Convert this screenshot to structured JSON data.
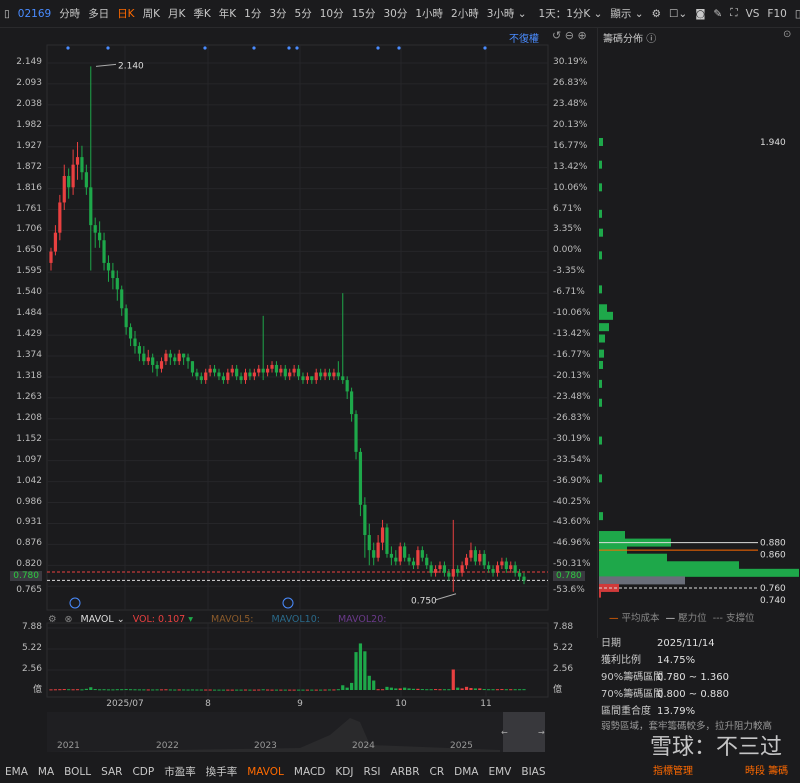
{
  "toolbar": {
    "code": "02169",
    "periods": [
      "分時",
      "多日",
      "日K",
      "周K",
      "月K",
      "季K",
      "年K",
      "1分",
      "3分",
      "5分",
      "10分",
      "15分",
      "30分",
      "1小時",
      "2小時",
      "3小時 ⌄"
    ],
    "active": "日K",
    "sub_period": "1天：1分K ⌄",
    "display": "顯示 ⌄",
    "right": [
      "VS",
      "F10"
    ]
  },
  "chart": {
    "adjust": "不復權",
    "high_label": "2.140",
    "low_label": "0.750",
    "current_price": "0.780",
    "left_axis": [
      "2.149",
      "2.093",
      "2.038",
      "1.982",
      "1.927",
      "1.872",
      "1.816",
      "1.761",
      "1.706",
      "1.650",
      "1.595",
      "1.540",
      "1.484",
      "1.429",
      "1.374",
      "1.318",
      "1.263",
      "1.208",
      "1.152",
      "1.097",
      "1.042",
      "0.986",
      "0.931",
      "0.876",
      "0.820"
    ],
    "left_axis_bottom": "0.765",
    "right_axis": [
      "30.19%",
      "26.83%",
      "23.48%",
      "20.13%",
      "16.77%",
      "13.42%",
      "10.06%",
      "6.71%",
      "3.35%",
      "0.00%",
      "-3.35%",
      "-6.71%",
      "-10.06%",
      "-13.42%",
      "-16.77%",
      "-20.13%",
      "-23.48%",
      "-26.83%",
      "-30.19%",
      "-33.54%",
      "-36.90%",
      "-40.25%",
      "-43.60%",
      "-46.96%",
      "-50.31%"
    ],
    "right_axis_bottom": "-53.6%",
    "up_color": "#e84040",
    "down_color": "#1ea84a",
    "candles": [
      [
        1.62,
        1.66,
        1.6,
        1.65,
        0.08
      ],
      [
        1.65,
        1.72,
        1.64,
        1.7,
        0.09
      ],
      [
        1.7,
        1.8,
        1.68,
        1.78,
        0.1
      ],
      [
        1.78,
        1.88,
        1.76,
        1.85,
        0.12
      ],
      [
        1.85,
        1.87,
        1.79,
        1.82,
        0.1
      ],
      [
        1.82,
        1.92,
        1.8,
        1.88,
        0.09
      ],
      [
        1.88,
        1.94,
        1.84,
        1.9,
        0.1
      ],
      [
        1.9,
        1.93,
        1.84,
        1.86,
        0.08
      ],
      [
        1.86,
        1.88,
        1.8,
        1.82,
        0.15
      ],
      [
        1.82,
        2.14,
        1.6,
        1.72,
        0.35
      ],
      [
        1.72,
        1.74,
        1.66,
        1.7,
        0.12
      ],
      [
        1.7,
        1.73,
        1.66,
        1.68,
        0.09
      ],
      [
        1.68,
        1.7,
        1.6,
        1.62,
        0.1
      ],
      [
        1.62,
        1.64,
        1.57,
        1.6,
        0.08
      ],
      [
        1.6,
        1.62,
        1.55,
        1.58,
        0.08
      ],
      [
        1.58,
        1.6,
        1.52,
        1.55,
        0.1
      ],
      [
        1.55,
        1.56,
        1.48,
        1.5,
        0.1
      ],
      [
        1.5,
        1.51,
        1.43,
        1.45,
        0.12
      ],
      [
        1.45,
        1.46,
        1.4,
        1.42,
        0.1
      ],
      [
        1.42,
        1.44,
        1.38,
        1.4,
        0.09
      ],
      [
        1.4,
        1.41,
        1.36,
        1.38,
        0.08
      ],
      [
        1.38,
        1.4,
        1.35,
        1.36,
        0.08
      ],
      [
        1.36,
        1.39,
        1.35,
        1.37,
        0.07
      ],
      [
        1.37,
        1.38,
        1.33,
        1.35,
        0.07
      ],
      [
        1.35,
        1.36,
        1.32,
        1.34,
        0.08
      ],
      [
        1.34,
        1.37,
        1.33,
        1.36,
        0.08
      ],
      [
        1.36,
        1.39,
        1.35,
        1.38,
        0.09
      ],
      [
        1.38,
        1.39,
        1.35,
        1.37,
        0.07
      ],
      [
        1.37,
        1.38,
        1.35,
        1.36,
        0.06
      ],
      [
        1.36,
        1.39,
        1.35,
        1.38,
        0.07
      ],
      [
        1.38,
        1.38,
        1.35,
        1.37,
        0.07
      ],
      [
        1.37,
        1.38,
        1.34,
        1.36,
        0.06
      ],
      [
        1.36,
        1.36,
        1.32,
        1.33,
        0.07
      ],
      [
        1.33,
        1.34,
        1.31,
        1.32,
        0.06
      ],
      [
        1.32,
        1.33,
        1.3,
        1.31,
        0.06
      ],
      [
        1.31,
        1.34,
        1.3,
        1.33,
        0.06
      ],
      [
        1.33,
        1.35,
        1.32,
        1.34,
        0.06
      ],
      [
        1.34,
        1.35,
        1.32,
        1.33,
        0.05
      ],
      [
        1.33,
        1.34,
        1.31,
        1.32,
        0.05
      ],
      [
        1.32,
        1.33,
        1.3,
        1.31,
        0.05
      ],
      [
        1.31,
        1.34,
        1.3,
        1.33,
        0.05
      ],
      [
        1.33,
        1.35,
        1.32,
        1.34,
        0.05
      ],
      [
        1.34,
        1.35,
        1.31,
        1.32,
        0.05
      ],
      [
        1.32,
        1.33,
        1.3,
        1.31,
        0.05
      ],
      [
        1.31,
        1.34,
        1.3,
        1.33,
        0.06
      ],
      [
        1.33,
        1.34,
        1.31,
        1.32,
        0.05
      ],
      [
        1.32,
        1.34,
        1.31,
        1.33,
        0.05
      ],
      [
        1.33,
        1.35,
        1.32,
        1.34,
        0.06
      ],
      [
        1.34,
        1.48,
        1.31,
        1.33,
        0.09
      ],
      [
        1.33,
        1.35,
        1.32,
        1.34,
        0.06
      ],
      [
        1.34,
        1.36,
        1.33,
        1.35,
        0.05
      ],
      [
        1.35,
        1.36,
        1.32,
        1.33,
        0.05
      ],
      [
        1.33,
        1.35,
        1.32,
        1.34,
        0.05
      ],
      [
        1.34,
        1.35,
        1.31,
        1.32,
        0.05
      ],
      [
        1.32,
        1.34,
        1.31,
        1.33,
        0.05
      ],
      [
        1.33,
        1.35,
        1.32,
        1.34,
        0.05
      ],
      [
        1.34,
        1.35,
        1.31,
        1.32,
        0.05
      ],
      [
        1.32,
        1.33,
        1.3,
        1.31,
        0.05
      ],
      [
        1.31,
        1.33,
        1.3,
        1.32,
        0.05
      ],
      [
        1.32,
        1.32,
        1.3,
        1.31,
        0.05
      ],
      [
        1.31,
        1.34,
        1.3,
        1.33,
        0.05
      ],
      [
        1.33,
        1.34,
        1.31,
        1.32,
        0.05
      ],
      [
        1.32,
        1.34,
        1.31,
        1.33,
        0.06
      ],
      [
        1.33,
        1.34,
        1.31,
        1.32,
        0.07
      ],
      [
        1.32,
        1.34,
        1.31,
        1.33,
        0.07
      ],
      [
        1.33,
        1.36,
        1.31,
        1.32,
        0.1
      ],
      [
        1.32,
        1.54,
        1.3,
        1.31,
        0.6
      ],
      [
        1.31,
        1.32,
        1.26,
        1.28,
        0.3
      ],
      [
        1.28,
        1.29,
        1.2,
        1.22,
        0.9
      ],
      [
        1.22,
        1.23,
        1.1,
        1.12,
        4.8
      ],
      [
        1.12,
        1.13,
        0.95,
        0.98,
        5.9
      ],
      [
        0.98,
        1.0,
        0.84,
        0.9,
        4.9
      ],
      [
        0.9,
        0.93,
        0.82,
        0.86,
        1.8
      ],
      [
        0.86,
        0.88,
        0.82,
        0.84,
        1.2
      ],
      [
        0.84,
        0.9,
        0.83,
        0.88,
        0.1
      ],
      [
        0.88,
        0.94,
        0.86,
        0.92,
        0.1
      ],
      [
        0.92,
        0.93,
        0.84,
        0.85,
        0.4
      ],
      [
        0.85,
        0.87,
        0.82,
        0.84,
        0.3
      ],
      [
        0.84,
        0.86,
        0.82,
        0.83,
        0.2
      ],
      [
        0.83,
        0.88,
        0.82,
        0.87,
        0.2
      ],
      [
        0.87,
        0.88,
        0.83,
        0.84,
        0.3
      ],
      [
        0.84,
        0.85,
        0.82,
        0.83,
        0.2
      ],
      [
        0.83,
        0.84,
        0.81,
        0.82,
        0.15
      ],
      [
        0.82,
        0.87,
        0.81,
        0.86,
        0.15
      ],
      [
        0.86,
        0.87,
        0.83,
        0.84,
        0.12
      ],
      [
        0.84,
        0.85,
        0.81,
        0.82,
        0.1
      ],
      [
        0.82,
        0.83,
        0.79,
        0.8,
        0.1
      ],
      [
        0.8,
        0.82,
        0.79,
        0.81,
        0.12
      ],
      [
        0.81,
        0.83,
        0.8,
        0.82,
        0.1
      ],
      [
        0.82,
        0.83,
        0.79,
        0.8,
        0.1
      ],
      [
        0.8,
        0.81,
        0.78,
        0.79,
        0.1
      ],
      [
        0.79,
        0.94,
        0.75,
        0.81,
        2.6
      ],
      [
        0.81,
        0.82,
        0.79,
        0.8,
        0.3
      ],
      [
        0.8,
        0.83,
        0.79,
        0.82,
        0.2
      ],
      [
        0.82,
        0.85,
        0.81,
        0.84,
        0.4
      ],
      [
        0.84,
        0.88,
        0.83,
        0.86,
        0.25
      ],
      [
        0.86,
        0.87,
        0.82,
        0.83,
        0.2
      ],
      [
        0.83,
        0.86,
        0.82,
        0.85,
        0.2
      ],
      [
        0.85,
        0.86,
        0.81,
        0.82,
        0.12
      ],
      [
        0.82,
        0.83,
        0.8,
        0.81,
        0.1
      ],
      [
        0.81,
        0.82,
        0.79,
        0.8,
        0.1
      ],
      [
        0.8,
        0.83,
        0.79,
        0.82,
        0.1
      ],
      [
        0.82,
        0.84,
        0.81,
        0.83,
        0.12
      ],
      [
        0.83,
        0.84,
        0.8,
        0.81,
        0.1
      ],
      [
        0.81,
        0.83,
        0.8,
        0.82,
        0.1
      ],
      [
        0.82,
        0.83,
        0.79,
        0.8,
        0.1
      ],
      [
        0.8,
        0.81,
        0.78,
        0.79,
        0.1
      ],
      [
        0.79,
        0.8,
        0.77,
        0.78,
        0.107
      ]
    ]
  },
  "volume": {
    "indicator": "MAVOL",
    "vol_label": "VOL:",
    "vol_value": "0.107",
    "ma5": "MAVOL5:",
    "ma10": "MAVOL10:",
    "ma20": "MAVOL20:",
    "axis": [
      "7.88",
      "5.22",
      "2.56",
      "億"
    ]
  },
  "time_axis": [
    "2025/07",
    "8",
    "9",
    "10",
    "11"
  ],
  "navigator_years": [
    "2021",
    "2022",
    "2023",
    "2024",
    "2025"
  ],
  "chips": {
    "title": "籌碼分佈",
    "top_label": "1.940",
    "levels": [
      "0.880",
      "0.860",
      "0.760",
      "0.740"
    ],
    "legend": [
      "平均成本",
      "壓力位",
      "支撐位"
    ],
    "info": [
      {
        "k": "日期",
        "v": "2025/11/14"
      },
      {
        "k": "獲利比例",
        "v": "14.75%"
      },
      {
        "k": "90%籌碼區間",
        "v": "0.780 ~ 1.360"
      },
      {
        "k": "70%籌碼區間",
        "v": "0.800 ~ 0.880"
      },
      {
        "k": "區間重合度",
        "v": "13.79%"
      }
    ],
    "note": "弱勢區域，套牢籌碼較多，拉升阻力較高",
    "link1": "指標管理",
    "link2": "時段 籌碼",
    "watermark": "雪球：不三过"
  },
  "indicators": [
    "EMA",
    "MA",
    "BOLL",
    "SAR",
    "CDP",
    "市盈率",
    "換手率",
    "MAVOL",
    "MACD",
    "KDJ",
    "RSI",
    "ARBR",
    "CR",
    "DMA",
    "EMV",
    "BIAS"
  ],
  "active_indicator": "MAVOL"
}
